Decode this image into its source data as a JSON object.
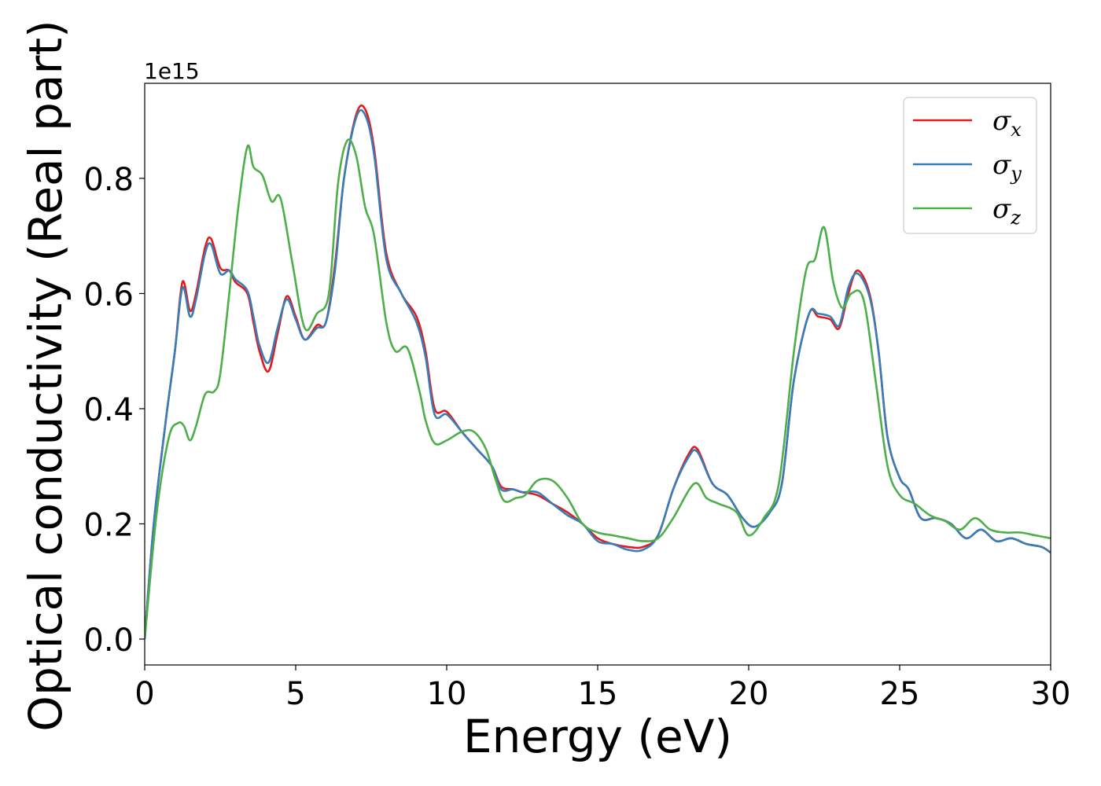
{
  "chart_data": {
    "type": "line",
    "xlabel": "Energy (eV)",
    "ylabel": "Optical conductivity (Real part)",
    "y_offset_label": "1e15",
    "xlim": [
      0,
      30
    ],
    "ylim": [
      -0.045,
      0.965
    ],
    "xticks": [
      0,
      5,
      10,
      15,
      20,
      25,
      30
    ],
    "yticks": [
      0.0,
      0.2,
      0.4,
      0.6,
      0.8
    ],
    "ytick_labels": [
      "0.0",
      "0.2",
      "0.4",
      "0.6",
      "0.8"
    ],
    "grid": false,
    "legend_position": "top-right",
    "series": [
      {
        "name": "x",
        "color": "#e41a1c",
        "points": [
          [
            0,
            0
          ],
          [
            0.3,
            0.2
          ],
          [
            0.7,
            0.38
          ],
          [
            1.0,
            0.5
          ],
          [
            1.25,
            0.62
          ],
          [
            1.5,
            0.57
          ],
          [
            1.7,
            0.6
          ],
          [
            2.0,
            0.68
          ],
          [
            2.2,
            0.695
          ],
          [
            2.5,
            0.645
          ],
          [
            2.8,
            0.64
          ],
          [
            3.0,
            0.62
          ],
          [
            3.4,
            0.6
          ],
          [
            3.6,
            0.55
          ],
          [
            3.8,
            0.5
          ],
          [
            4.1,
            0.465
          ],
          [
            4.4,
            0.53
          ],
          [
            4.7,
            0.595
          ],
          [
            5.0,
            0.56
          ],
          [
            5.3,
            0.52
          ],
          [
            5.7,
            0.545
          ],
          [
            6.0,
            0.55
          ],
          [
            6.3,
            0.65
          ],
          [
            6.6,
            0.8
          ],
          [
            7.0,
            0.91
          ],
          [
            7.3,
            0.92
          ],
          [
            7.6,
            0.85
          ],
          [
            8.0,
            0.67
          ],
          [
            8.5,
            0.6
          ],
          [
            9.0,
            0.56
          ],
          [
            9.3,
            0.5
          ],
          [
            9.6,
            0.4
          ],
          [
            10.0,
            0.395
          ],
          [
            10.5,
            0.36
          ],
          [
            11.0,
            0.33
          ],
          [
            11.5,
            0.3
          ],
          [
            11.8,
            0.265
          ],
          [
            12.2,
            0.26
          ],
          [
            12.5,
            0.255
          ],
          [
            13.0,
            0.25
          ],
          [
            13.5,
            0.235
          ],
          [
            14.0,
            0.22
          ],
          [
            14.5,
            0.2
          ],
          [
            15.0,
            0.175
          ],
          [
            15.5,
            0.165
          ],
          [
            16.0,
            0.16
          ],
          [
            16.5,
            0.16
          ],
          [
            17.0,
            0.18
          ],
          [
            17.5,
            0.26
          ],
          [
            18.0,
            0.32
          ],
          [
            18.3,
            0.33
          ],
          [
            18.8,
            0.27
          ],
          [
            19.3,
            0.25
          ],
          [
            19.8,
            0.21
          ],
          [
            20.2,
            0.195
          ],
          [
            20.7,
            0.22
          ],
          [
            21.1,
            0.27
          ],
          [
            21.5,
            0.45
          ],
          [
            22.0,
            0.565
          ],
          [
            22.3,
            0.56
          ],
          [
            22.7,
            0.555
          ],
          [
            23.0,
            0.54
          ],
          [
            23.3,
            0.6
          ],
          [
            23.6,
            0.64
          ],
          [
            24.0,
            0.6
          ],
          [
            24.3,
            0.5
          ],
          [
            24.6,
            0.35
          ],
          [
            25.0,
            0.28
          ],
          [
            25.3,
            0.26
          ],
          [
            25.7,
            0.21
          ],
          [
            26.2,
            0.21
          ],
          [
            26.7,
            0.2
          ],
          [
            27.2,
            0.175
          ],
          [
            27.7,
            0.19
          ],
          [
            28.2,
            0.17
          ],
          [
            28.7,
            0.175
          ],
          [
            29.2,
            0.165
          ],
          [
            29.7,
            0.16
          ],
          [
            30,
            0.15
          ]
        ]
      },
      {
        "name": "y",
        "color": "#377eb8",
        "points": [
          [
            0,
            0
          ],
          [
            0.3,
            0.2
          ],
          [
            0.7,
            0.38
          ],
          [
            1.0,
            0.5
          ],
          [
            1.25,
            0.61
          ],
          [
            1.5,
            0.56
          ],
          [
            1.7,
            0.59
          ],
          [
            2.0,
            0.67
          ],
          [
            2.2,
            0.685
          ],
          [
            2.5,
            0.635
          ],
          [
            2.8,
            0.64
          ],
          [
            3.0,
            0.625
          ],
          [
            3.4,
            0.605
          ],
          [
            3.6,
            0.56
          ],
          [
            3.8,
            0.51
          ],
          [
            4.1,
            0.48
          ],
          [
            4.4,
            0.54
          ],
          [
            4.7,
            0.59
          ],
          [
            5.0,
            0.555
          ],
          [
            5.3,
            0.52
          ],
          [
            5.7,
            0.54
          ],
          [
            6.0,
            0.55
          ],
          [
            6.3,
            0.64
          ],
          [
            6.6,
            0.8
          ],
          [
            7.0,
            0.905
          ],
          [
            7.3,
            0.91
          ],
          [
            7.6,
            0.84
          ],
          [
            8.0,
            0.66
          ],
          [
            8.5,
            0.6
          ],
          [
            9.0,
            0.55
          ],
          [
            9.3,
            0.49
          ],
          [
            9.6,
            0.39
          ],
          [
            10.0,
            0.39
          ],
          [
            10.5,
            0.36
          ],
          [
            11.0,
            0.33
          ],
          [
            11.5,
            0.3
          ],
          [
            11.8,
            0.26
          ],
          [
            12.2,
            0.26
          ],
          [
            12.5,
            0.255
          ],
          [
            13.0,
            0.255
          ],
          [
            13.5,
            0.235
          ],
          [
            14.0,
            0.215
          ],
          [
            14.5,
            0.2
          ],
          [
            15.0,
            0.17
          ],
          [
            15.5,
            0.165
          ],
          [
            16.0,
            0.155
          ],
          [
            16.5,
            0.155
          ],
          [
            17.0,
            0.18
          ],
          [
            17.5,
            0.26
          ],
          [
            18.0,
            0.315
          ],
          [
            18.3,
            0.325
          ],
          [
            18.8,
            0.27
          ],
          [
            19.3,
            0.25
          ],
          [
            19.8,
            0.21
          ],
          [
            20.2,
            0.195
          ],
          [
            20.7,
            0.22
          ],
          [
            21.1,
            0.27
          ],
          [
            21.5,
            0.45
          ],
          [
            22.0,
            0.565
          ],
          [
            22.3,
            0.565
          ],
          [
            22.7,
            0.56
          ],
          [
            23.0,
            0.545
          ],
          [
            23.3,
            0.61
          ],
          [
            23.6,
            0.635
          ],
          [
            24.0,
            0.595
          ],
          [
            24.3,
            0.5
          ],
          [
            24.6,
            0.35
          ],
          [
            25.0,
            0.28
          ],
          [
            25.3,
            0.26
          ],
          [
            25.7,
            0.21
          ],
          [
            26.2,
            0.21
          ],
          [
            26.7,
            0.2
          ],
          [
            27.2,
            0.175
          ],
          [
            27.7,
            0.19
          ],
          [
            28.2,
            0.17
          ],
          [
            28.7,
            0.175
          ],
          [
            29.2,
            0.165
          ],
          [
            29.7,
            0.16
          ],
          [
            30,
            0.15
          ]
        ]
      },
      {
        "name": "z",
        "color": "#4daf4a",
        "points": [
          [
            0,
            0
          ],
          [
            0.4,
            0.22
          ],
          [
            0.8,
            0.35
          ],
          [
            1.1,
            0.375
          ],
          [
            1.3,
            0.37
          ],
          [
            1.5,
            0.345
          ],
          [
            1.7,
            0.37
          ],
          [
            2.0,
            0.425
          ],
          [
            2.3,
            0.43
          ],
          [
            2.5,
            0.46
          ],
          [
            2.8,
            0.6
          ],
          [
            3.1,
            0.75
          ],
          [
            3.4,
            0.855
          ],
          [
            3.6,
            0.82
          ],
          [
            3.9,
            0.805
          ],
          [
            4.2,
            0.76
          ],
          [
            4.5,
            0.765
          ],
          [
            4.9,
            0.65
          ],
          [
            5.3,
            0.54
          ],
          [
            5.7,
            0.565
          ],
          [
            6.1,
            0.6
          ],
          [
            6.4,
            0.79
          ],
          [
            6.7,
            0.865
          ],
          [
            7.0,
            0.84
          ],
          [
            7.3,
            0.75
          ],
          [
            7.6,
            0.7
          ],
          [
            8.0,
            0.55
          ],
          [
            8.3,
            0.5
          ],
          [
            8.7,
            0.505
          ],
          [
            9.1,
            0.43
          ],
          [
            9.3,
            0.38
          ],
          [
            9.6,
            0.34
          ],
          [
            10.0,
            0.345
          ],
          [
            10.5,
            0.36
          ],
          [
            10.9,
            0.36
          ],
          [
            11.3,
            0.33
          ],
          [
            11.6,
            0.28
          ],
          [
            11.9,
            0.24
          ],
          [
            12.3,
            0.245
          ],
          [
            12.6,
            0.25
          ],
          [
            13.0,
            0.275
          ],
          [
            13.5,
            0.275
          ],
          [
            14.0,
            0.245
          ],
          [
            14.5,
            0.2
          ],
          [
            15.0,
            0.185
          ],
          [
            15.5,
            0.18
          ],
          [
            16.0,
            0.175
          ],
          [
            16.5,
            0.17
          ],
          [
            17.0,
            0.175
          ],
          [
            17.5,
            0.21
          ],
          [
            18.2,
            0.27
          ],
          [
            18.6,
            0.245
          ],
          [
            19.0,
            0.235
          ],
          [
            19.6,
            0.22
          ],
          [
            20.0,
            0.18
          ],
          [
            20.5,
            0.21
          ],
          [
            21.0,
            0.27
          ],
          [
            21.5,
            0.5
          ],
          [
            21.9,
            0.64
          ],
          [
            22.2,
            0.66
          ],
          [
            22.5,
            0.715
          ],
          [
            22.8,
            0.62
          ],
          [
            23.1,
            0.575
          ],
          [
            23.4,
            0.6
          ],
          [
            23.8,
            0.59
          ],
          [
            24.2,
            0.45
          ],
          [
            24.6,
            0.3
          ],
          [
            25.0,
            0.25
          ],
          [
            25.5,
            0.235
          ],
          [
            26.0,
            0.215
          ],
          [
            26.5,
            0.205
          ],
          [
            27.0,
            0.19
          ],
          [
            27.5,
            0.21
          ],
          [
            28.0,
            0.19
          ],
          [
            28.5,
            0.185
          ],
          [
            29.0,
            0.185
          ],
          [
            29.5,
            0.18
          ],
          [
            30,
            0.175
          ]
        ]
      }
    ]
  }
}
